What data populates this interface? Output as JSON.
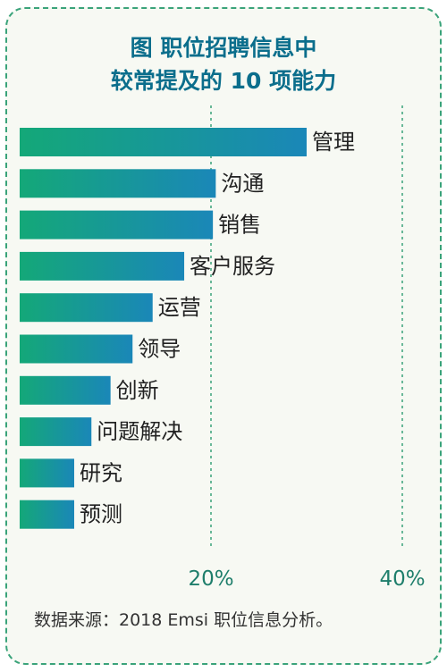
{
  "chart_data": {
    "type": "bar",
    "orientation": "horizontal",
    "title_lines": [
      "图  职位招聘信息中",
      "较常提及的 10 项能力"
    ],
    "categories": [
      "管理",
      "沟通",
      "销售",
      "客户服务",
      "运营",
      "领导",
      "创新",
      "问题解决",
      "研究",
      "预测"
    ],
    "values": [
      30,
      20.5,
      20.2,
      17.2,
      13.9,
      11.8,
      9.5,
      7.5,
      5.7,
      5.7
    ],
    "xlim": [
      0,
      45
    ],
    "xticks": [
      20,
      40
    ],
    "xtick_labels": [
      "20%",
      "40%"
    ],
    "grid": "vertical dashed at ticks",
    "colors": {
      "bar_start": "#14a878",
      "bar_end": "#1a87b8",
      "grid": "#3aa37a",
      "title": "#0b6e8c",
      "tick": "#1e7e6b"
    }
  },
  "source": "数据来源：2018 Emsi 职位信息分析。"
}
